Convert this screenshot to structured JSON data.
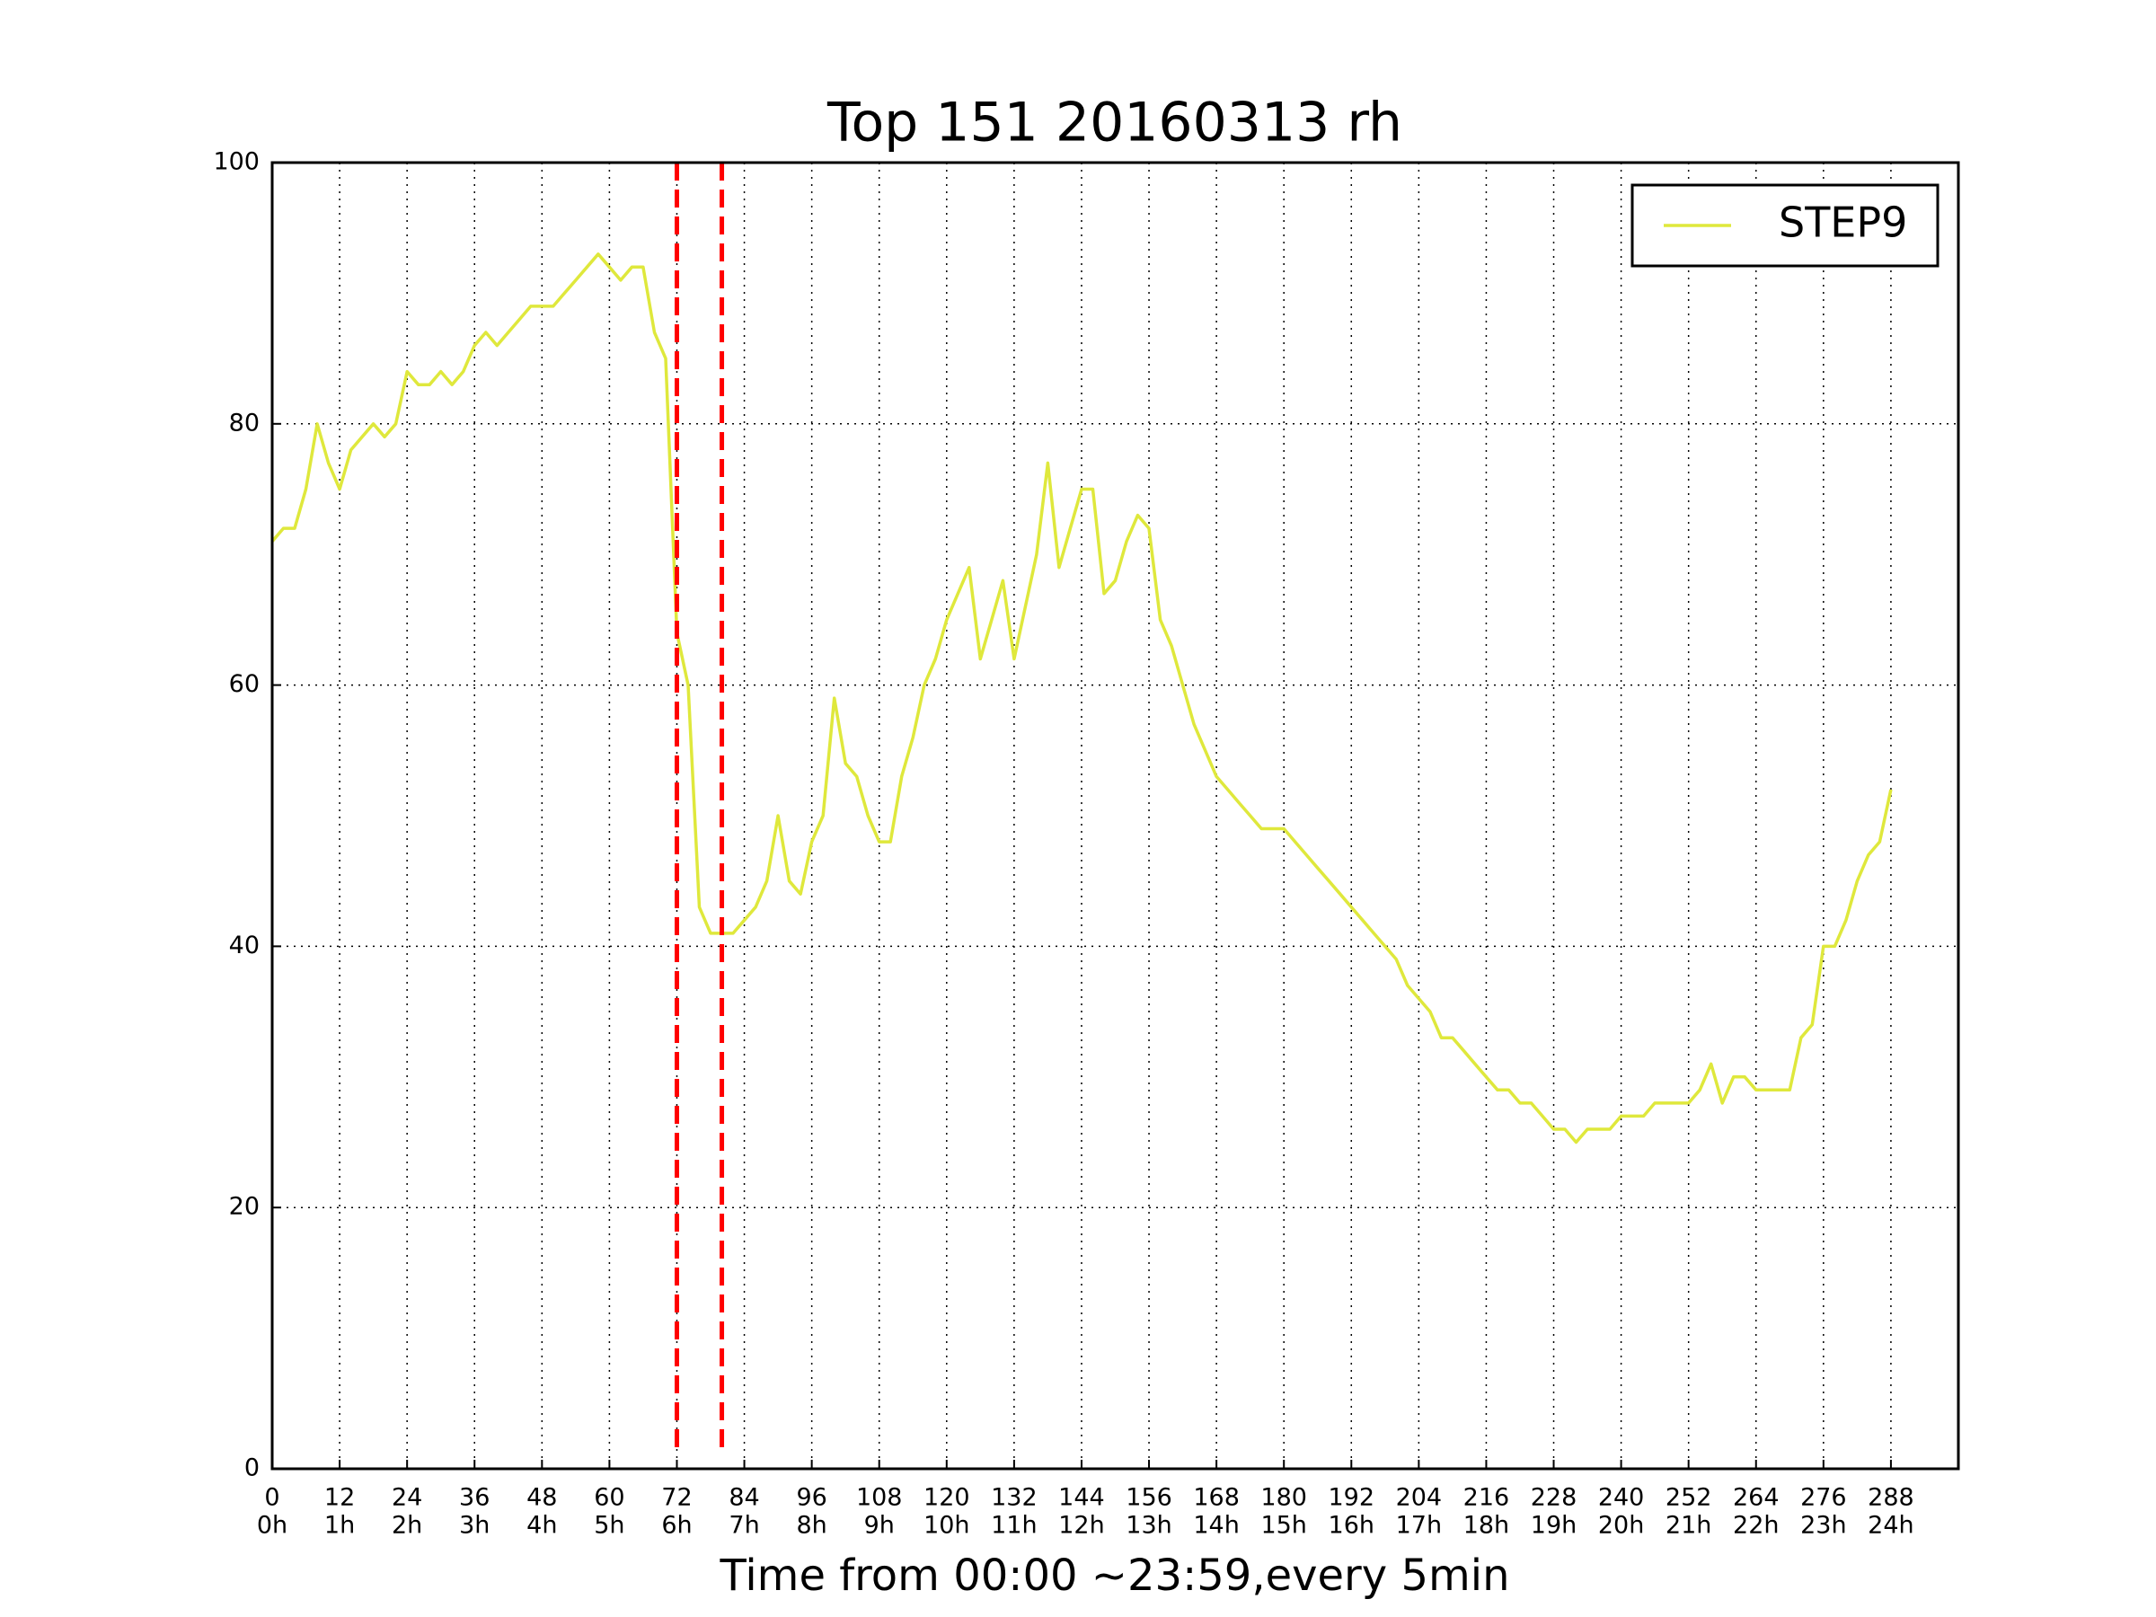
{
  "chart_data": {
    "type": "line",
    "title": "Top 151 20160313 rh",
    "x_label": "Time from 00:00 ~23:59,every 5min",
    "x": [
      0,
      2,
      4,
      6,
      8,
      10,
      12,
      14,
      16,
      18,
      20,
      22,
      24,
      26,
      28,
      30,
      32,
      34,
      36,
      38,
      40,
      42,
      44,
      46,
      48,
      50,
      52,
      54,
      56,
      58,
      60,
      62,
      64,
      66,
      68,
      70,
      72,
      74,
      76,
      78,
      80,
      82,
      84,
      86,
      88,
      90,
      92,
      94,
      96,
      98,
      100,
      102,
      104,
      106,
      108,
      110,
      112,
      114,
      116,
      118,
      120,
      122,
      124,
      126,
      128,
      130,
      132,
      134,
      136,
      138,
      140,
      142,
      144,
      146,
      148,
      150,
      152,
      154,
      156,
      158,
      160,
      162,
      164,
      166,
      168,
      170,
      172,
      174,
      176,
      178,
      180,
      182,
      184,
      186,
      188,
      190,
      192,
      194,
      196,
      198,
      200,
      202,
      204,
      206,
      208,
      210,
      212,
      214,
      216,
      218,
      220,
      222,
      224,
      226,
      228,
      230,
      232,
      234,
      236,
      238,
      240,
      242,
      244,
      246,
      248,
      250,
      252,
      254,
      256,
      258,
      260,
      262,
      264,
      266,
      268,
      270,
      272,
      274,
      276,
      278,
      280,
      282,
      284,
      286,
      288
    ],
    "series": [
      {
        "name": "STEP9",
        "color": "#dfe83c",
        "values": [
          71,
          72,
          72,
          75,
          80,
          77,
          75,
          78,
          79,
          80,
          79,
          80,
          84,
          83,
          83,
          84,
          83,
          84,
          86,
          87,
          86,
          87,
          88,
          89,
          89,
          89,
          90,
          91,
          92,
          93,
          92,
          91,
          92,
          92,
          87,
          85,
          64,
          60,
          43,
          41,
          41,
          41,
          42,
          43,
          45,
          50,
          45,
          44,
          48,
          50,
          59,
          54,
          53,
          50,
          48,
          48,
          53,
          56,
          60,
          62,
          65,
          67,
          69,
          62,
          65,
          68,
          62,
          66,
          70,
          77,
          69,
          72,
          75,
          75,
          67,
          68,
          71,
          73,
          72,
          65,
          63,
          60,
          57,
          55,
          53,
          52,
          51,
          50,
          49,
          49,
          49,
          48,
          47,
          46,
          45,
          44,
          43,
          42,
          41,
          40,
          39,
          37,
          36,
          35,
          33,
          33,
          32,
          31,
          30,
          29,
          29,
          28,
          28,
          27,
          26,
          26,
          25,
          26,
          26,
          26,
          27,
          27,
          27,
          28,
          28,
          28,
          28,
          29,
          31,
          28,
          30,
          30,
          29,
          29,
          29,
          29,
          33,
          34,
          40,
          40,
          42,
          45,
          47,
          48,
          52
        ]
      }
    ],
    "vlines": [
      {
        "x": 72,
        "color": "#ff0000"
      },
      {
        "x": 80,
        "color": "#ff0000"
      }
    ],
    "xlim": [
      0,
      300
    ],
    "ylim": [
      0,
      100
    ],
    "xticks": [
      0,
      12,
      24,
      36,
      48,
      60,
      72,
      84,
      96,
      108,
      120,
      132,
      144,
      156,
      168,
      180,
      192,
      204,
      216,
      228,
      240,
      252,
      264,
      276,
      288
    ],
    "xtick_hours": [
      "0h",
      "1h",
      "2h",
      "3h",
      "4h",
      "5h",
      "6h",
      "7h",
      "8h",
      "9h",
      "10h",
      "11h",
      "12h",
      "13h",
      "14h",
      "15h",
      "16h",
      "17h",
      "18h",
      "19h",
      "20h",
      "21h",
      "22h",
      "23h",
      "24h"
    ],
    "yticks": [
      0,
      20,
      40,
      60,
      80,
      100
    ],
    "grid": true,
    "legend": "upper right"
  }
}
